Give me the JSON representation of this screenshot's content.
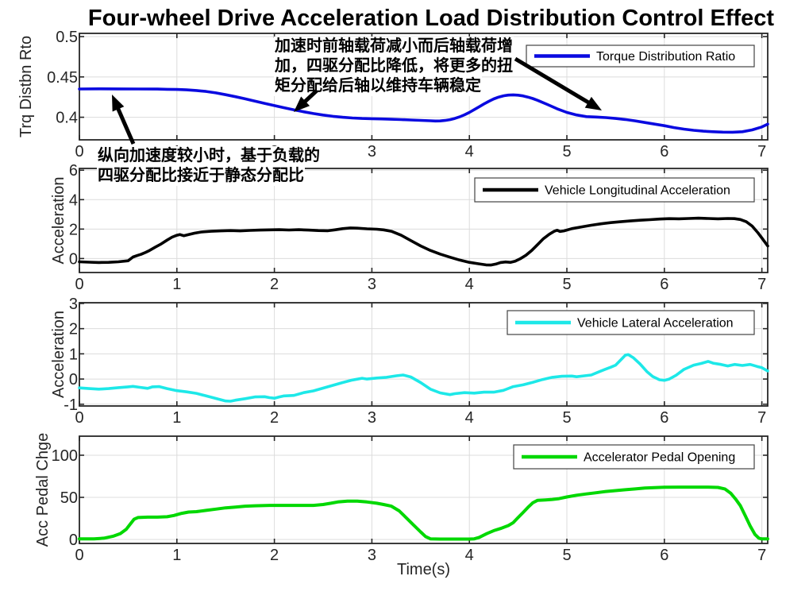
{
  "title": "Four-wheel Drive Acceleration Load Distribution Control Effect",
  "xlabel": "Time(s)",
  "x_tick_labels": [
    "0",
    "1",
    "2",
    "3",
    "4",
    "5",
    "6",
    "7"
  ],
  "annotations": {
    "accel_note_lines": [
      "加速时前轴载荷减小而后轴载荷增",
      "加，四驱分配比降低，将更多的扭",
      "矩分配给后轴以维持车辆稳定"
    ],
    "static_note_lines": [
      "纵向加速度较小时，基于负载的",
      "四驱分配比接近于静态分配比"
    ]
  },
  "chart_data": [
    {
      "type": "line",
      "name": "torque-distribution-ratio",
      "legend": "Torque Distribution Ratio",
      "color": "#0a0ae0",
      "ylabel": "Trq Distbn Rto",
      "xlim": [
        0,
        7.06
      ],
      "ylim": [
        0.372,
        0.504
      ],
      "ytick_values": [
        0.4,
        0.45,
        0.5
      ],
      "ytick_labels": [
        "0.4",
        "0.45",
        "0.5"
      ],
      "x": [
        0,
        0.2,
        0.4,
        0.6,
        0.8,
        0.9,
        1.0,
        1.1,
        1.2,
        1.3,
        1.4,
        1.5,
        1.6,
        1.7,
        1.8,
        1.9,
        2.0,
        2.1,
        2.2,
        2.3,
        2.4,
        2.5,
        2.6,
        2.7,
        2.8,
        2.9,
        3.0,
        3.1,
        3.2,
        3.3,
        3.4,
        3.5,
        3.6,
        3.65,
        3.7,
        3.75,
        3.8,
        3.85,
        3.9,
        3.95,
        4.0,
        4.05,
        4.1,
        4.15,
        4.2,
        4.25,
        4.3,
        4.35,
        4.4,
        4.45,
        4.5,
        4.55,
        4.6,
        4.65,
        4.7,
        4.8,
        4.9,
        5.0,
        5.1,
        5.2,
        5.3,
        5.4,
        5.5,
        5.6,
        5.7,
        5.8,
        5.9,
        6.0,
        6.1,
        6.2,
        6.3,
        6.4,
        6.5,
        6.6,
        6.7,
        6.8,
        6.9,
        7.0,
        7.06
      ],
      "y": [
        0.435,
        0.4352,
        0.4351,
        0.435,
        0.4349,
        0.4347,
        0.4345,
        0.434,
        0.4332,
        0.432,
        0.4302,
        0.428,
        0.4255,
        0.4228,
        0.42,
        0.4172,
        0.4145,
        0.4118,
        0.4092,
        0.4068,
        0.4046,
        0.4027,
        0.4012,
        0.4,
        0.3991,
        0.3985,
        0.3982,
        0.3979,
        0.3975,
        0.3971,
        0.3966,
        0.3961,
        0.3956,
        0.3953,
        0.3954,
        0.396,
        0.397,
        0.3985,
        0.4005,
        0.403,
        0.406,
        0.4095,
        0.413,
        0.4165,
        0.4198,
        0.4227,
        0.425,
        0.4266,
        0.4275,
        0.4278,
        0.4274,
        0.4265,
        0.425,
        0.4232,
        0.421,
        0.4158,
        0.4105,
        0.406,
        0.4028,
        0.4008,
        0.4003,
        0.3996,
        0.3985,
        0.3972,
        0.3955,
        0.3935,
        0.3915,
        0.3895,
        0.3872,
        0.3853,
        0.3838,
        0.3827,
        0.382,
        0.3816,
        0.3815,
        0.382,
        0.3843,
        0.388,
        0.3915
      ]
    },
    {
      "type": "line",
      "name": "vehicle-longitudinal-acceleration",
      "legend": "Vehicle Longitudinal Acceleration",
      "color": "#000000",
      "ylabel": "Acceleration",
      "xlim": [
        0,
        7.06
      ],
      "ylim": [
        -0.95,
        6.12
      ],
      "ytick_values": [
        0,
        2,
        4,
        6
      ],
      "ytick_labels": [
        "0",
        "2",
        "4",
        "6"
      ],
      "x": [
        0,
        0.1,
        0.2,
        0.3,
        0.4,
        0.5,
        0.55,
        0.6,
        0.63,
        0.68,
        0.72,
        0.78,
        0.84,
        0.9,
        0.95,
        1.0,
        1.03,
        1.07,
        1.12,
        1.18,
        1.25,
        1.35,
        1.45,
        1.55,
        1.65,
        1.75,
        1.85,
        1.95,
        2.05,
        2.15,
        2.25,
        2.35,
        2.45,
        2.55,
        2.62,
        2.7,
        2.78,
        2.85,
        2.95,
        3.05,
        3.12,
        3.2,
        3.3,
        3.4,
        3.5,
        3.6,
        3.7,
        3.8,
        3.9,
        4.0,
        4.1,
        4.17,
        4.22,
        4.27,
        4.32,
        4.37,
        4.42,
        4.47,
        4.52,
        4.58,
        4.64,
        4.7,
        4.76,
        4.82,
        4.87,
        4.9,
        4.93,
        4.97,
        5.05,
        5.15,
        5.25,
        5.35,
        5.45,
        5.55,
        5.65,
        5.75,
        5.85,
        5.95,
        6.05,
        6.15,
        6.25,
        6.35,
        6.45,
        6.55,
        6.65,
        6.72,
        6.78,
        6.84,
        6.9,
        6.96,
        7.0,
        7.06
      ],
      "y": [
        -0.22,
        -0.25,
        -0.27,
        -0.26,
        -0.22,
        -0.15,
        0.1,
        0.22,
        0.28,
        0.42,
        0.55,
        0.78,
        1.0,
        1.25,
        1.45,
        1.58,
        1.63,
        1.55,
        1.63,
        1.72,
        1.8,
        1.85,
        1.88,
        1.9,
        1.88,
        1.91,
        1.93,
        1.95,
        1.96,
        1.94,
        1.96,
        1.93,
        1.9,
        1.89,
        1.95,
        2.03,
        2.08,
        2.06,
        2.02,
        1.99,
        1.95,
        1.85,
        1.58,
        1.22,
        0.86,
        0.55,
        0.3,
        0.09,
        -0.1,
        -0.26,
        -0.36,
        -0.43,
        -0.44,
        -0.38,
        -0.27,
        -0.23,
        -0.26,
        -0.18,
        -0.02,
        0.22,
        0.55,
        0.95,
        1.35,
        1.65,
        1.85,
        1.92,
        1.84,
        1.88,
        2.03,
        2.15,
        2.26,
        2.36,
        2.44,
        2.5,
        2.55,
        2.6,
        2.64,
        2.68,
        2.71,
        2.7,
        2.72,
        2.74,
        2.72,
        2.7,
        2.72,
        2.71,
        2.65,
        2.5,
        2.2,
        1.75,
        1.4,
        0.85
      ]
    },
    {
      "type": "line",
      "name": "vehicle-lateral-acceleration",
      "legend": "Vehicle Lateral Acceleration",
      "color": "#1de8e8",
      "ylabel": "Acceleration",
      "xlim": [
        0,
        7.06
      ],
      "ylim": [
        -1.07,
        3.03
      ],
      "ytick_values": [
        -1,
        0,
        1,
        2,
        3
      ],
      "ytick_labels": [
        "-1",
        "0",
        "1",
        "2",
        "3"
      ],
      "x": [
        0,
        0.1,
        0.2,
        0.3,
        0.4,
        0.5,
        0.55,
        0.62,
        0.7,
        0.75,
        0.82,
        0.9,
        1.0,
        1.1,
        1.2,
        1.3,
        1.4,
        1.5,
        1.55,
        1.6,
        1.7,
        1.8,
        1.9,
        1.95,
        2.0,
        2.05,
        2.1,
        2.2,
        2.3,
        2.4,
        2.5,
        2.6,
        2.7,
        2.8,
        2.9,
        2.95,
        3.05,
        3.15,
        3.25,
        3.32,
        3.4,
        3.5,
        3.6,
        3.7,
        3.8,
        3.85,
        3.95,
        4.05,
        4.15,
        4.25,
        4.35,
        4.45,
        4.55,
        4.65,
        4.75,
        4.85,
        4.95,
        5.05,
        5.1,
        5.18,
        5.25,
        5.35,
        5.45,
        5.5,
        5.55,
        5.6,
        5.63,
        5.68,
        5.75,
        5.82,
        5.88,
        5.95,
        6.0,
        6.05,
        6.12,
        6.2,
        6.3,
        6.38,
        6.45,
        6.5,
        6.58,
        6.65,
        6.72,
        6.8,
        6.88,
        6.95,
        7.0,
        7.06
      ],
      "y": [
        -0.35,
        -0.38,
        -0.4,
        -0.38,
        -0.34,
        -0.31,
        -0.29,
        -0.33,
        -0.37,
        -0.31,
        -0.3,
        -0.38,
        -0.46,
        -0.51,
        -0.57,
        -0.67,
        -0.77,
        -0.87,
        -0.88,
        -0.84,
        -0.78,
        -0.71,
        -0.7,
        -0.74,
        -0.76,
        -0.71,
        -0.67,
        -0.65,
        -0.54,
        -0.47,
        -0.36,
        -0.25,
        -0.14,
        -0.04,
        0.03,
        0.0,
        0.04,
        0.07,
        0.13,
        0.16,
        0.08,
        -0.14,
        -0.4,
        -0.55,
        -0.62,
        -0.58,
        -0.54,
        -0.56,
        -0.52,
        -0.52,
        -0.45,
        -0.3,
        -0.23,
        -0.13,
        -0.02,
        0.07,
        0.11,
        0.12,
        0.09,
        0.13,
        0.16,
        0.32,
        0.47,
        0.55,
        0.75,
        0.95,
        0.97,
        0.85,
        0.6,
        0.3,
        0.1,
        -0.03,
        -0.05,
        0.0,
        0.15,
        0.38,
        0.55,
        0.62,
        0.7,
        0.63,
        0.58,
        0.52,
        0.58,
        0.54,
        0.58,
        0.5,
        0.45,
        0.32
      ]
    },
    {
      "type": "line",
      "name": "accelerator-pedal-opening",
      "legend": "Accelerator Pedal Opening",
      "color": "#00d800",
      "ylabel": "Acc Pedal Chge",
      "xlim": [
        0,
        7.06
      ],
      "ylim": [
        -4.7,
        122.6
      ],
      "ytick_values": [
        0,
        50,
        100
      ],
      "ytick_labels": [
        "0",
        "50",
        "100"
      ],
      "x": [
        0,
        0.15,
        0.25,
        0.35,
        0.42,
        0.48,
        0.52,
        0.56,
        0.6,
        0.7,
        0.8,
        0.9,
        0.97,
        1.05,
        1.12,
        1.2,
        1.3,
        1.4,
        1.5,
        1.6,
        1.7,
        1.8,
        1.95,
        2.1,
        2.25,
        2.4,
        2.5,
        2.58,
        2.65,
        2.75,
        2.85,
        2.95,
        3.05,
        3.12,
        3.2,
        3.28,
        3.35,
        3.42,
        3.5,
        3.55,
        3.6,
        3.7,
        3.8,
        3.9,
        4.0,
        4.05,
        4.1,
        4.18,
        4.25,
        4.32,
        4.4,
        4.45,
        4.5,
        4.55,
        4.6,
        4.65,
        4.7,
        4.78,
        4.85,
        4.92,
        5.0,
        5.1,
        5.2,
        5.3,
        5.4,
        5.5,
        5.6,
        5.7,
        5.8,
        5.9,
        6.0,
        6.15,
        6.3,
        6.45,
        6.55,
        6.62,
        6.68,
        6.73,
        6.78,
        6.83,
        6.88,
        6.93,
        6.97,
        7.0,
        7.06
      ],
      "y": [
        0.7,
        0.7,
        1.5,
        4,
        7,
        12,
        18,
        24,
        26,
        26.5,
        26.5,
        27,
        28.5,
        31,
        32.5,
        33,
        34.5,
        36,
        37.5,
        38.5,
        39.5,
        40,
        40.5,
        40.5,
        40.5,
        40.5,
        41.5,
        43,
        44.5,
        45.5,
        45.5,
        44.5,
        43,
        41.5,
        39.5,
        34,
        26,
        18,
        9,
        3.5,
        0.8,
        0.5,
        0.5,
        0.5,
        0.5,
        0.8,
        2.5,
        7,
        10.5,
        13,
        16.5,
        20,
        26,
        32,
        38,
        43.5,
        46.5,
        47,
        47.5,
        48.5,
        50.5,
        52.5,
        54,
        55.5,
        57,
        58,
        59,
        60,
        61,
        61.5,
        62,
        62.2,
        62.2,
        62.2,
        61.8,
        60,
        55,
        48,
        40,
        28,
        16,
        6,
        1.5,
        0.7,
        0.7
      ]
    }
  ]
}
